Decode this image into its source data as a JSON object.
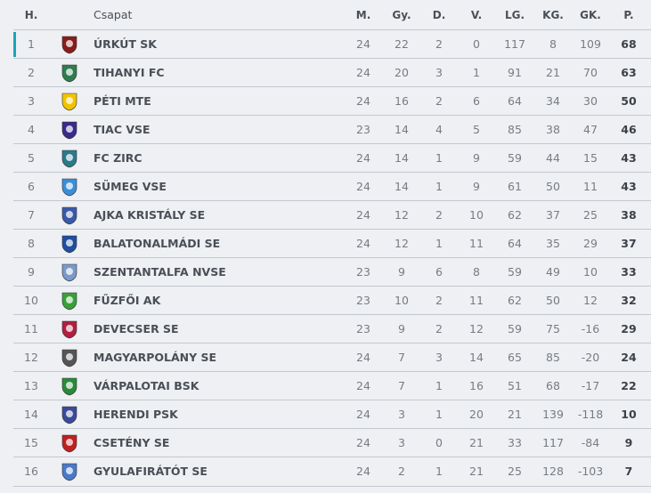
{
  "header": {
    "pos": "H.",
    "team": "Csapat",
    "played": "M.",
    "won": "Gy.",
    "drawn": "D.",
    "lost": "V.",
    "gf": "LG.",
    "ga": "KG.",
    "gd": "GK.",
    "points": "P."
  },
  "accent_color": "#1ba6b6",
  "rows": [
    {
      "pos": "1",
      "team": "ÚRKÚT SK",
      "played": "24",
      "won": "22",
      "drawn": "2",
      "lost": "0",
      "gf": "117",
      "ga": "8",
      "gd": "109",
      "points": "68",
      "logo_color": "#8a1c1c"
    },
    {
      "pos": "2",
      "team": "TIHANYI FC",
      "played": "24",
      "won": "20",
      "drawn": "3",
      "lost": "1",
      "gf": "91",
      "ga": "21",
      "gd": "70",
      "points": "63",
      "logo_color": "#2e7d4f"
    },
    {
      "pos": "3",
      "team": "PÉTI MTE",
      "played": "24",
      "won": "16",
      "drawn": "2",
      "lost": "6",
      "gf": "64",
      "ga": "34",
      "gd": "30",
      "points": "50",
      "logo_color": "#f2c400"
    },
    {
      "pos": "4",
      "team": "TIAC VSE",
      "played": "23",
      "won": "14",
      "drawn": "4",
      "lost": "5",
      "gf": "85",
      "ga": "38",
      "gd": "47",
      "points": "46",
      "logo_color": "#3a2a8a"
    },
    {
      "pos": "5",
      "team": "FC ZIRC",
      "played": "24",
      "won": "14",
      "drawn": "1",
      "lost": "9",
      "gf": "59",
      "ga": "44",
      "gd": "15",
      "points": "43",
      "logo_color": "#2a7a8a"
    },
    {
      "pos": "6",
      "team": "SÜMEG VSE",
      "played": "24",
      "won": "14",
      "drawn": "1",
      "lost": "9",
      "gf": "61",
      "ga": "50",
      "gd": "11",
      "points": "43",
      "logo_color": "#3a8ed8"
    },
    {
      "pos": "7",
      "team": "AJKA KRISTÁLY SE",
      "played": "24",
      "won": "12",
      "drawn": "2",
      "lost": "10",
      "gf": "62",
      "ga": "37",
      "gd": "25",
      "points": "38",
      "logo_color": "#3a5aa8"
    },
    {
      "pos": "8",
      "team": "BALATONALMÁDI SE",
      "played": "24",
      "won": "12",
      "drawn": "1",
      "lost": "11",
      "gf": "64",
      "ga": "35",
      "gd": "29",
      "points": "37",
      "logo_color": "#1f4fa0"
    },
    {
      "pos": "9",
      "team": "SZENTANTALFA NVSE",
      "played": "23",
      "won": "9",
      "drawn": "6",
      "lost": "8",
      "gf": "59",
      "ga": "49",
      "gd": "10",
      "points": "33",
      "logo_color": "#7a9ac8"
    },
    {
      "pos": "10",
      "team": "FŰZFŐI AK",
      "played": "23",
      "won": "10",
      "drawn": "2",
      "lost": "11",
      "gf": "62",
      "ga": "50",
      "gd": "12",
      "points": "32",
      "logo_color": "#3aa03a"
    },
    {
      "pos": "11",
      "team": "DEVECSER SE",
      "played": "23",
      "won": "9",
      "drawn": "2",
      "lost": "12",
      "gf": "59",
      "ga": "75",
      "gd": "-16",
      "points": "29",
      "logo_color": "#b02040"
    },
    {
      "pos": "12",
      "team": "MAGYARPOLÁNY SE",
      "played": "24",
      "won": "7",
      "drawn": "3",
      "lost": "14",
      "gf": "65",
      "ga": "85",
      "gd": "-20",
      "points": "24",
      "logo_color": "#555555"
    },
    {
      "pos": "13",
      "team": "VÁRPALOTAI BSK",
      "played": "24",
      "won": "7",
      "drawn": "1",
      "lost": "16",
      "gf": "51",
      "ga": "68",
      "gd": "-17",
      "points": "22",
      "logo_color": "#2a8a3a"
    },
    {
      "pos": "14",
      "team": "HERENDI PSK",
      "played": "24",
      "won": "3",
      "drawn": "1",
      "lost": "20",
      "gf": "21",
      "ga": "139",
      "gd": "-118",
      "points": "10",
      "logo_color": "#3a4a9a"
    },
    {
      "pos": "15",
      "team": "CSETÉNY SE",
      "played": "24",
      "won": "3",
      "drawn": "0",
      "lost": "21",
      "gf": "33",
      "ga": "117",
      "gd": "-84",
      "points": "9",
      "logo_color": "#c02020"
    },
    {
      "pos": "16",
      "team": "GYULAFIRÁTÓT SE",
      "played": "24",
      "won": "2",
      "drawn": "1",
      "lost": "21",
      "gf": "25",
      "ga": "128",
      "gd": "-103",
      "points": "7",
      "logo_color": "#4a7ac8"
    }
  ]
}
